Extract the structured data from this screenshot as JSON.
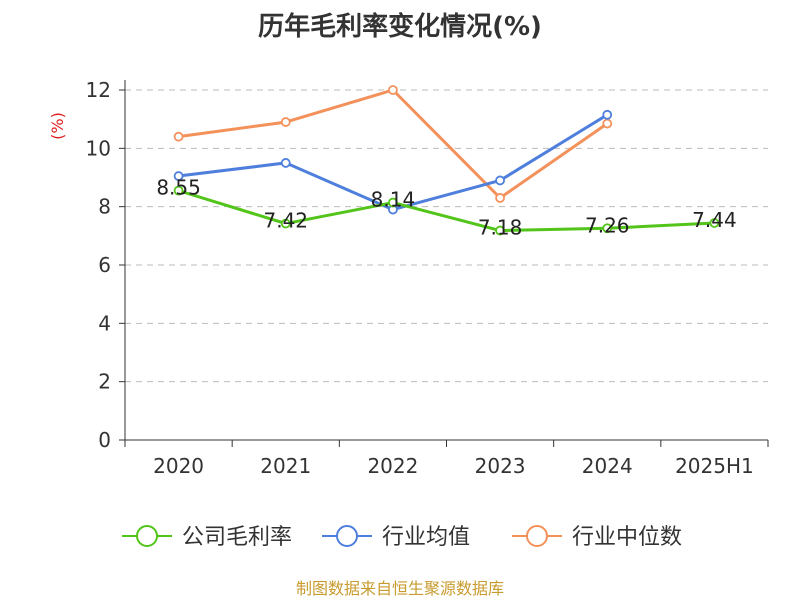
{
  "chart_data": {
    "type": "line",
    "title": "历年毛利率变化情况(%)",
    "xlabel": "",
    "ylabel": "(%)",
    "categories": [
      "2020",
      "2021",
      "2022",
      "2023",
      "2024",
      "2025H1"
    ],
    "ylim": [
      0,
      12
    ],
    "yticks": [
      0,
      2,
      4,
      6,
      8,
      10,
      12
    ],
    "grid": true,
    "legend_position": "bottom",
    "series": [
      {
        "name": "公司毛利率",
        "color": "#52c41a",
        "values": [
          8.55,
          7.42,
          8.14,
          7.18,
          7.26,
          7.44
        ],
        "labels": [
          "8.55",
          "7.42",
          "8.14",
          "7.18",
          "7.26",
          "7.44"
        ]
      },
      {
        "name": "行业均值",
        "color": "#4f7fdc",
        "values": [
          9.05,
          9.5,
          7.9,
          8.9,
          11.15,
          null
        ]
      },
      {
        "name": "行业中位数",
        "color": "#f4915b",
        "values": [
          10.4,
          10.9,
          12.0,
          8.3,
          10.85,
          null
        ]
      }
    ]
  },
  "source_text": "制图数据来自恒生聚源数据库",
  "colors": {
    "label_red": "#e02020",
    "source_gold": "#c89b2e",
    "axis": "#333333",
    "grid": "#bbbbbb"
  }
}
